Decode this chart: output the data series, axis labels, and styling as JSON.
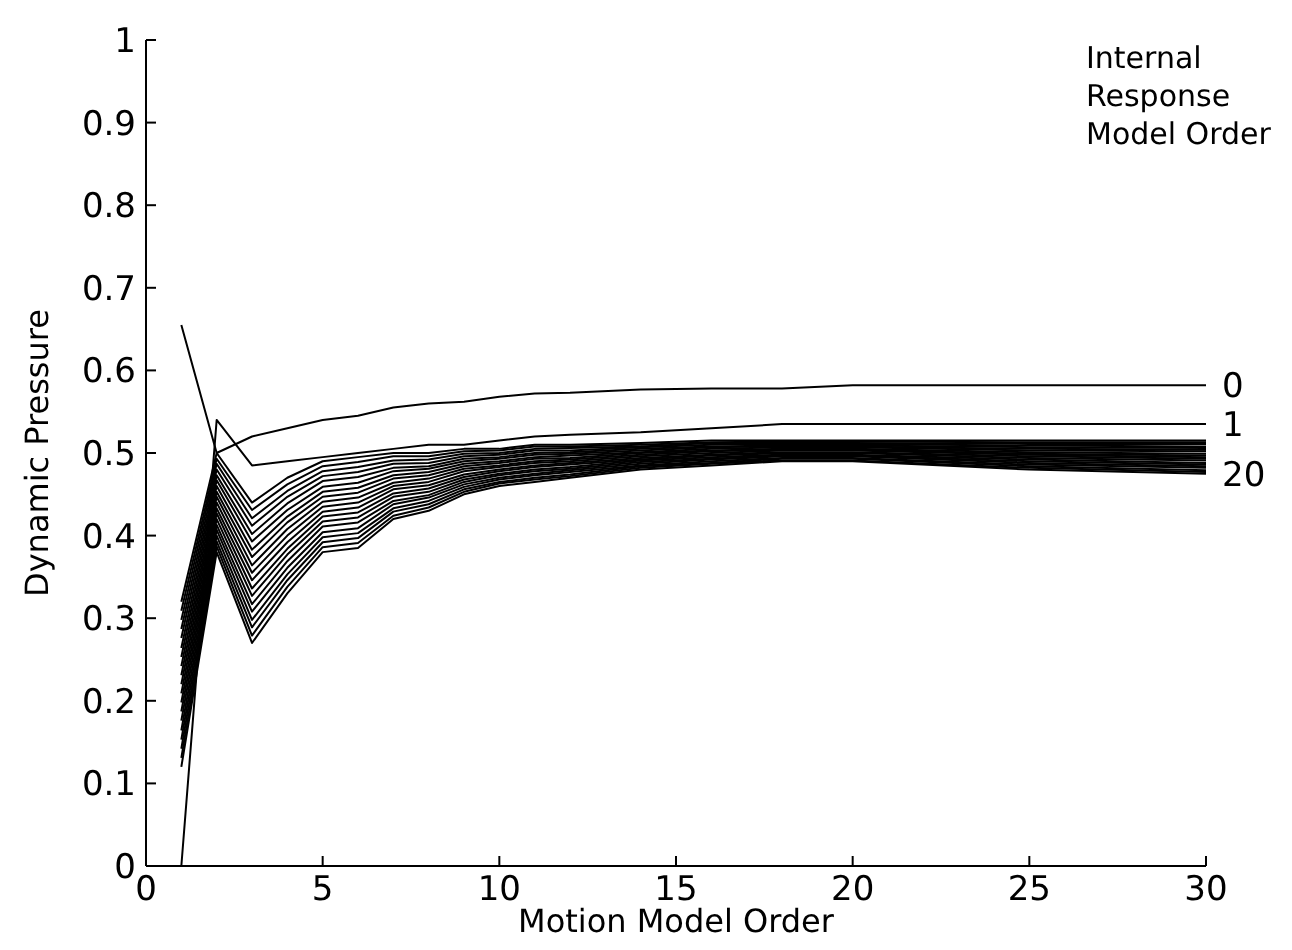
{
  "chart_data": {
    "type": "line",
    "xlabel": "Motion Model Order",
    "ylabel": "Dynamic Pressure",
    "annotations": [
      "Internal\nResponse\nModel Order"
    ],
    "x": [
      1,
      2,
      3,
      4,
      5,
      6,
      7,
      8,
      9,
      10,
      11,
      12,
      14,
      16,
      18,
      20,
      25,
      30
    ],
    "xlim": [
      0,
      30
    ],
    "xticks": [
      0,
      5,
      10,
      15,
      20,
      25,
      30
    ],
    "ylim": [
      0,
      1
    ],
    "yticks": [
      0,
      0.1,
      0.2,
      0.3,
      0.4,
      0.5,
      0.6,
      0.7,
      0.8,
      0.9,
      1
    ],
    "grid": false,
    "series": [
      {
        "name": "0",
        "color": "#000000",
        "values": [
          0.655,
          0.5,
          0.52,
          0.53,
          0.54,
          0.545,
          0.555,
          0.56,
          0.562,
          0.568,
          0.572,
          0.573,
          0.577,
          0.578,
          0.578,
          0.582,
          0.582,
          0.582
        ]
      },
      {
        "name": "1",
        "color": "#000000",
        "values": [
          0.0,
          0.54,
          0.485,
          0.49,
          0.495,
          0.5,
          0.505,
          0.51,
          0.51,
          0.515,
          0.52,
          0.522,
          0.525,
          0.53,
          0.535,
          0.535,
          0.535,
          0.535
        ]
      },
      {
        "color": "#000000",
        "values": [
          0.32,
          0.5,
          0.44,
          0.47,
          0.49,
          0.495,
          0.5,
          0.5,
          0.505,
          0.505,
          0.51,
          0.51,
          0.512,
          0.515,
          0.515,
          0.515,
          0.515,
          0.515
        ]
      },
      {
        "color": "#000000",
        "values": [
          0.309,
          0.493,
          0.431,
          0.462,
          0.484,
          0.489,
          0.496,
          0.496,
          0.502,
          0.503,
          0.508,
          0.508,
          0.51,
          0.513,
          0.514,
          0.514,
          0.513,
          0.513
        ]
      },
      {
        "color": "#000000",
        "values": [
          0.298,
          0.487,
          0.421,
          0.454,
          0.478,
          0.483,
          0.491,
          0.492,
          0.499,
          0.5,
          0.505,
          0.506,
          0.508,
          0.512,
          0.512,
          0.512,
          0.511,
          0.511
        ]
      },
      {
        "color": "#000000",
        "values": [
          0.287,
          0.48,
          0.412,
          0.447,
          0.472,
          0.477,
          0.487,
          0.488,
          0.496,
          0.498,
          0.503,
          0.503,
          0.507,
          0.51,
          0.511,
          0.511,
          0.509,
          0.508
        ]
      },
      {
        "color": "#000000",
        "values": [
          0.276,
          0.473,
          0.402,
          0.439,
          0.466,
          0.471,
          0.482,
          0.484,
          0.493,
          0.495,
          0.5,
          0.501,
          0.505,
          0.508,
          0.509,
          0.509,
          0.507,
          0.506
        ]
      },
      {
        "color": "#000000",
        "values": [
          0.264,
          0.467,
          0.393,
          0.431,
          0.459,
          0.464,
          0.478,
          0.481,
          0.49,
          0.493,
          0.498,
          0.499,
          0.503,
          0.507,
          0.508,
          0.508,
          0.505,
          0.504
        ]
      },
      {
        "color": "#000000",
        "values": [
          0.253,
          0.46,
          0.383,
          0.423,
          0.453,
          0.458,
          0.473,
          0.477,
          0.487,
          0.49,
          0.495,
          0.497,
          0.501,
          0.505,
          0.507,
          0.507,
          0.503,
          0.502
        ]
      },
      {
        "color": "#000000",
        "values": [
          0.242,
          0.453,
          0.374,
          0.416,
          0.447,
          0.452,
          0.469,
          0.473,
          0.484,
          0.488,
          0.493,
          0.494,
          0.5,
          0.503,
          0.505,
          0.505,
          0.501,
          0.499
        ]
      },
      {
        "color": "#000000",
        "values": [
          0.231,
          0.447,
          0.364,
          0.408,
          0.441,
          0.446,
          0.464,
          0.469,
          0.481,
          0.485,
          0.49,
          0.492,
          0.498,
          0.502,
          0.504,
          0.504,
          0.499,
          0.497
        ]
      },
      {
        "color": "#000000",
        "values": [
          0.22,
          0.44,
          0.355,
          0.4,
          0.435,
          0.44,
          0.46,
          0.465,
          0.478,
          0.483,
          0.488,
          0.49,
          0.496,
          0.5,
          0.503,
          0.503,
          0.498,
          0.495
        ]
      },
      {
        "color": "#000000",
        "values": [
          0.209,
          0.433,
          0.346,
          0.392,
          0.429,
          0.434,
          0.456,
          0.461,
          0.474,
          0.48,
          0.485,
          0.488,
          0.494,
          0.498,
          0.501,
          0.501,
          0.496,
          0.493
        ]
      },
      {
        "color": "#000000",
        "values": [
          0.198,
          0.427,
          0.336,
          0.384,
          0.423,
          0.428,
          0.451,
          0.457,
          0.471,
          0.478,
          0.483,
          0.486,
          0.492,
          0.497,
          0.5,
          0.5,
          0.494,
          0.491
        ]
      },
      {
        "color": "#000000",
        "values": [
          0.187,
          0.42,
          0.327,
          0.377,
          0.417,
          0.422,
          0.447,
          0.453,
          0.468,
          0.475,
          0.48,
          0.483,
          0.491,
          0.495,
          0.498,
          0.498,
          0.492,
          0.488
        ]
      },
      {
        "color": "#000000",
        "values": [
          0.176,
          0.413,
          0.317,
          0.369,
          0.411,
          0.416,
          0.442,
          0.449,
          0.465,
          0.473,
          0.478,
          0.481,
          0.489,
          0.493,
          0.497,
          0.497,
          0.49,
          0.486
        ]
      },
      {
        "color": "#000000",
        "values": [
          0.164,
          0.407,
          0.308,
          0.361,
          0.404,
          0.409,
          0.438,
          0.446,
          0.462,
          0.47,
          0.475,
          0.479,
          0.487,
          0.492,
          0.496,
          0.496,
          0.488,
          0.484
        ]
      },
      {
        "color": "#000000",
        "values": [
          0.153,
          0.4,
          0.298,
          0.353,
          0.398,
          0.403,
          0.433,
          0.442,
          0.459,
          0.468,
          0.473,
          0.477,
          0.485,
          0.49,
          0.494,
          0.494,
          0.486,
          0.482
        ]
      },
      {
        "color": "#000000",
        "values": [
          0.142,
          0.393,
          0.289,
          0.346,
          0.392,
          0.397,
          0.429,
          0.438,
          0.456,
          0.465,
          0.47,
          0.474,
          0.484,
          0.488,
          0.493,
          0.493,
          0.484,
          0.479
        ]
      },
      {
        "color": "#000000",
        "values": [
          0.131,
          0.387,
          0.279,
          0.338,
          0.386,
          0.391,
          0.424,
          0.434,
          0.453,
          0.463,
          0.468,
          0.472,
          0.482,
          0.487,
          0.491,
          0.491,
          0.482,
          0.477
        ]
      },
      {
        "name": "20",
        "color": "#000000",
        "values": [
          0.12,
          0.38,
          0.27,
          0.33,
          0.38,
          0.385,
          0.42,
          0.43,
          0.45,
          0.46,
          0.465,
          0.47,
          0.48,
          0.485,
          0.49,
          0.49,
          0.48,
          0.475
        ]
      }
    ]
  }
}
